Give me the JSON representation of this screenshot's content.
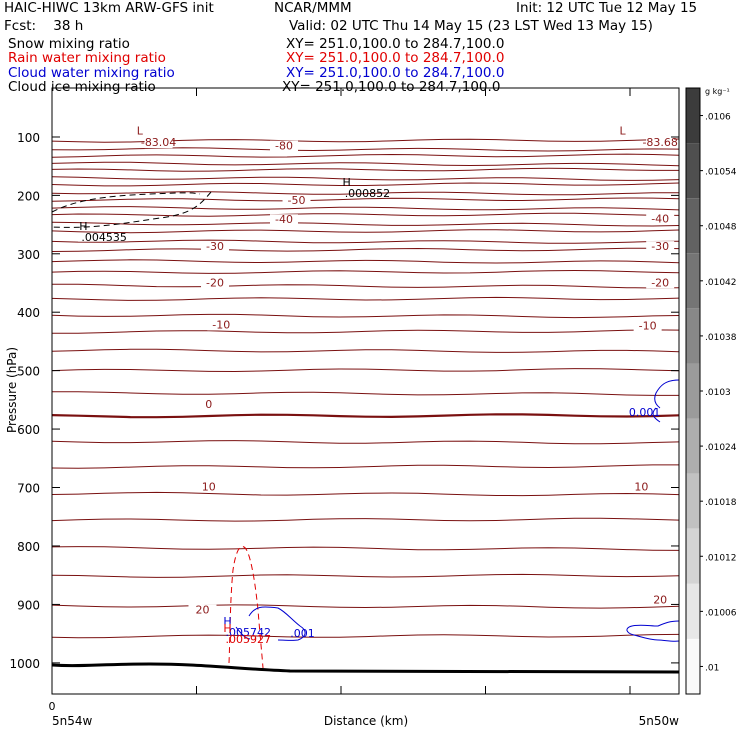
{
  "header": {
    "line1_left": "HAIC-HIWC 13km ARW-GFS init",
    "line1_mid": "NCAR/MMM",
    "line1_right": "Init: 12 UTC Tue 12 May 15",
    "line2_left": "Fcst:    38 h",
    "line2_right": "Valid: 02 UTC Thu 14 May 15 (23 LST Wed 13 May 15)",
    "fields": [
      {
        "name": "Snow mixing ratio",
        "xy": "XY= 251.0,100.0 to 284.7,100.0",
        "color": "#000000"
      },
      {
        "name": "Rain water mixing ratio",
        "xy": "XY= 251.0,100.0 to 284.7,100.0",
        "color": "#e00000"
      },
      {
        "name": "Cloud water mixing ratio",
        "xy": "XY= 251.0,100.0 to 284.7,100.0",
        "color": "#0000d0"
      },
      {
        "name": "Cloud ice mixing ratio",
        "xy": "XY= 251.0,100.0 to 284.7,100.0",
        "color": "#000000"
      }
    ]
  },
  "chart_data": {
    "type": "cross-section contour",
    "ylabel": "Pressure (hPa)",
    "xlabel": "Distance (km)",
    "y_ticks": [
      100,
      200,
      300,
      400,
      500,
      600,
      700,
      800,
      900,
      1000
    ],
    "ylim": [
      1050,
      80
    ],
    "x_start_tick": "0",
    "x_left_label": "5n54w",
    "x_right_label": "5n50w",
    "temperature_labels": [
      {
        "text": "-83.04",
        "x": 0.17,
        "p": 114,
        "color": "#8b1a1a"
      },
      {
        "text": "-80",
        "x": 0.37,
        "p": 120,
        "color": "#8b1a1a"
      },
      {
        "text": "-83.68",
        "x": 0.97,
        "p": 114,
        "color": "#8b1a1a"
      },
      {
        "text": "-50",
        "x": 0.39,
        "p": 213,
        "color": "#8b1a1a"
      },
      {
        "text": "-40",
        "x": 0.37,
        "p": 246,
        "color": "#8b1a1a"
      },
      {
        "text": "-40",
        "x": 0.97,
        "p": 245,
        "color": "#8b1a1a"
      },
      {
        "text": "-30",
        "x": 0.26,
        "p": 292,
        "color": "#8b1a1a"
      },
      {
        "text": "-30",
        "x": 0.97,
        "p": 292,
        "color": "#8b1a1a"
      },
      {
        "text": "-20",
        "x": 0.26,
        "p": 354,
        "color": "#8b1a1a"
      },
      {
        "text": "-20",
        "x": 0.97,
        "p": 354,
        "color": "#8b1a1a"
      },
      {
        "text": "-10",
        "x": 0.27,
        "p": 426,
        "color": "#8b1a1a"
      },
      {
        "text": "-10",
        "x": 0.95,
        "p": 428,
        "color": "#8b1a1a"
      },
      {
        "text": "0",
        "x": 0.25,
        "p": 562,
        "color": "#8b1a1a"
      },
      {
        "text": "10",
        "x": 0.25,
        "p": 703,
        "color": "#8b1a1a"
      },
      {
        "text": "10",
        "x": 0.94,
        "p": 703,
        "color": "#8b1a1a"
      },
      {
        "text": "20",
        "x": 0.24,
        "p": 914,
        "color": "#8b1a1a"
      },
      {
        "text": "20",
        "x": 0.97,
        "p": 897,
        "color": "#8b1a1a"
      }
    ],
    "extrema": [
      {
        "type": "L",
        "x": 0.14,
        "p": 96,
        "value": "",
        "color": "#8b1a1a"
      },
      {
        "type": "L",
        "x": 0.91,
        "p": 96,
        "value": "",
        "color": "#8b1a1a"
      },
      {
        "type": "H",
        "x": 0.47,
        "p": 184,
        "value": ".000852",
        "color": "#000000"
      },
      {
        "type": "H",
        "x": 0.05,
        "p": 259,
        "value": ".004535",
        "color": "#000000"
      },
      {
        "type": "H",
        "x": 0.28,
        "p": 935,
        "value": ".005742",
        "color": "#0000d0"
      },
      {
        "type": "H",
        "x": 0.28,
        "p": 947,
        "value": ".005927",
        "color": "#e00000"
      }
    ],
    "cloud_water_labels": [
      {
        "text": ".001",
        "x": 0.38,
        "p": 956,
        "color": "#0000d0"
      },
      {
        "text": "0.001",
        "x": 0.92,
        "p": 578,
        "color": "#0000d0"
      }
    ],
    "isotherm_pressures": [
      107,
      120,
      133,
      145,
      157,
      170,
      182,
      195,
      208,
      221,
      234,
      248,
      262,
      278,
      294,
      312,
      332,
      354,
      378,
      405,
      434,
      465,
      500,
      538,
      578,
      621,
      665,
      710,
      756,
      803,
      852,
      902,
      955
    ],
    "colorbar": {
      "unit": "g kg⁻¹",
      "labels": [
        ".0106",
        ".01054",
        ".01048",
        ".01042",
        ".01038",
        ".0103",
        ".01024",
        ".01018",
        ".01012",
        ".01006",
        ".01"
      ]
    }
  }
}
